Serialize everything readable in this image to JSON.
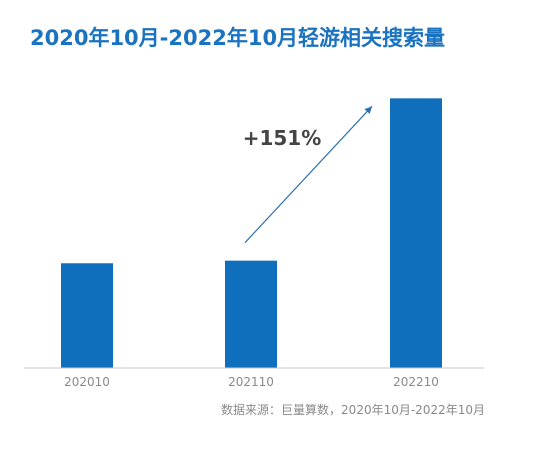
{
  "chart_data": {
    "type": "bar",
    "title": "2020年10月-2022年10月轻游相关搜索量",
    "categories": [
      "202010",
      "202110",
      "202210"
    ],
    "values": [
      40,
      41,
      103
    ],
    "ylim": [
      0,
      110
    ],
    "annotation": "+151%",
    "source": "数据来源：巨量算数，2020年10月-2022年10月",
    "grid": false,
    "legend": "none",
    "bar_color": "#0f6fbc",
    "text_color": "#8a8a8a",
    "title_color": "#1a73c0",
    "arrow_color": "#2a6fb0"
  }
}
